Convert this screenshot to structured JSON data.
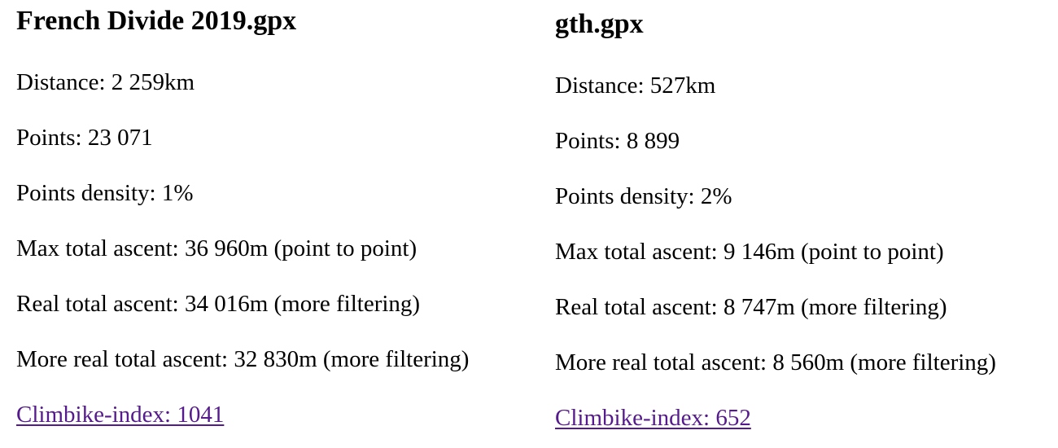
{
  "files": [
    {
      "title": "French Divide 2019.gpx",
      "distance": "Distance: 2 259km",
      "points": "Points: 23 071",
      "density": "Points density: 1%",
      "max_ascent": "Max total ascent: 36 960m (point to point)",
      "real_ascent": "Real total ascent: 34 016m (more filtering)",
      "more_real_ascent": "More real total ascent: 32 830m (more filtering)",
      "climbike_index": "Climbike-index: 1041"
    },
    {
      "title": "gth.gpx",
      "distance": "Distance: 527km",
      "points": "Points: 8 899",
      "density": "Points density: 2%",
      "max_ascent": "Max total ascent: 9 146m (point to point)",
      "real_ascent": "Real total ascent: 8 747m (more filtering)",
      "more_real_ascent": "More real total ascent: 8 560m (more filtering)",
      "climbike_index": "Climbike-index: 652"
    }
  ],
  "colors": {
    "visited_link": "#551a8b",
    "text": "#000000",
    "background": "#ffffff"
  }
}
